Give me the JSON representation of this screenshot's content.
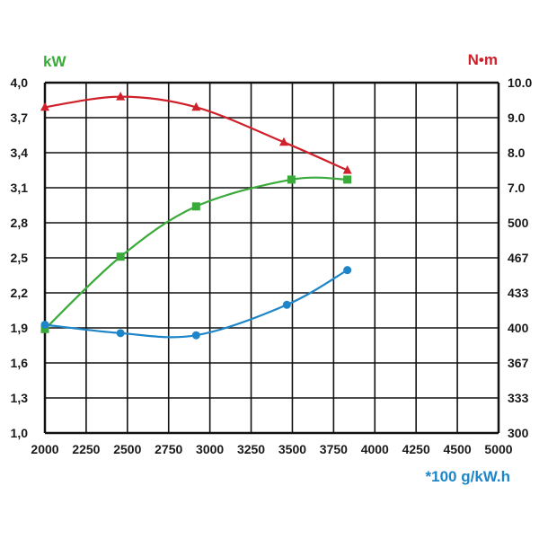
{
  "chart_data": {
    "type": "line",
    "title": "",
    "x": {
      "ticks": [
        2000,
        2250,
        2500,
        2750,
        3000,
        3250,
        3500,
        3750,
        4000,
        4250,
        4500,
        5000
      ],
      "range": [
        2000,
        5000
      ],
      "label": "",
      "unit_note": "*100 g/kW.h"
    },
    "y_left": {
      "label": "kW",
      "ticks": [
        "4,0",
        "3,7",
        "3,4",
        "3,1",
        "2,8",
        "2,5",
        "2,2",
        "1,9",
        "1,6",
        "1,3",
        "1,0"
      ],
      "range": [
        1.0,
        4.0
      ]
    },
    "y_right": {
      "label": "N•m",
      "ticks": [
        "10.0",
        "9.0",
        "8.0",
        "7.0",
        "500",
        "467",
        "433",
        "400",
        "367",
        "333",
        "300"
      ]
    },
    "grid": true,
    "series": [
      {
        "name": "N•m",
        "color": "#d0202a",
        "marker": "triangle",
        "axis": "right",
        "points": [
          [
            2000,
            9.3
          ],
          [
            2500,
            9.6
          ],
          [
            3000,
            9.3
          ],
          [
            3580,
            8.3
          ],
          [
            4000,
            7.5
          ]
        ]
      },
      {
        "name": "kW",
        "color": "#3aaa3a",
        "marker": "square",
        "axis": "left",
        "points": [
          [
            2000,
            1.89
          ],
          [
            2500,
            2.51
          ],
          [
            3000,
            2.94
          ],
          [
            3630,
            3.17
          ],
          [
            4000,
            3.17
          ]
        ]
      },
      {
        "name": "*100 g/kW.h",
        "color": "#1e86c8",
        "marker": "circle",
        "axis": "right",
        "points": [
          [
            2000,
            403
          ],
          [
            2500,
            395
          ],
          [
            3000,
            393
          ],
          [
            3600,
            422
          ],
          [
            4000,
            455
          ]
        ]
      }
    ]
  },
  "colors": {
    "kw": "#3aaa3a",
    "torque": "#d0202a",
    "consumption": "#1e86c8"
  }
}
